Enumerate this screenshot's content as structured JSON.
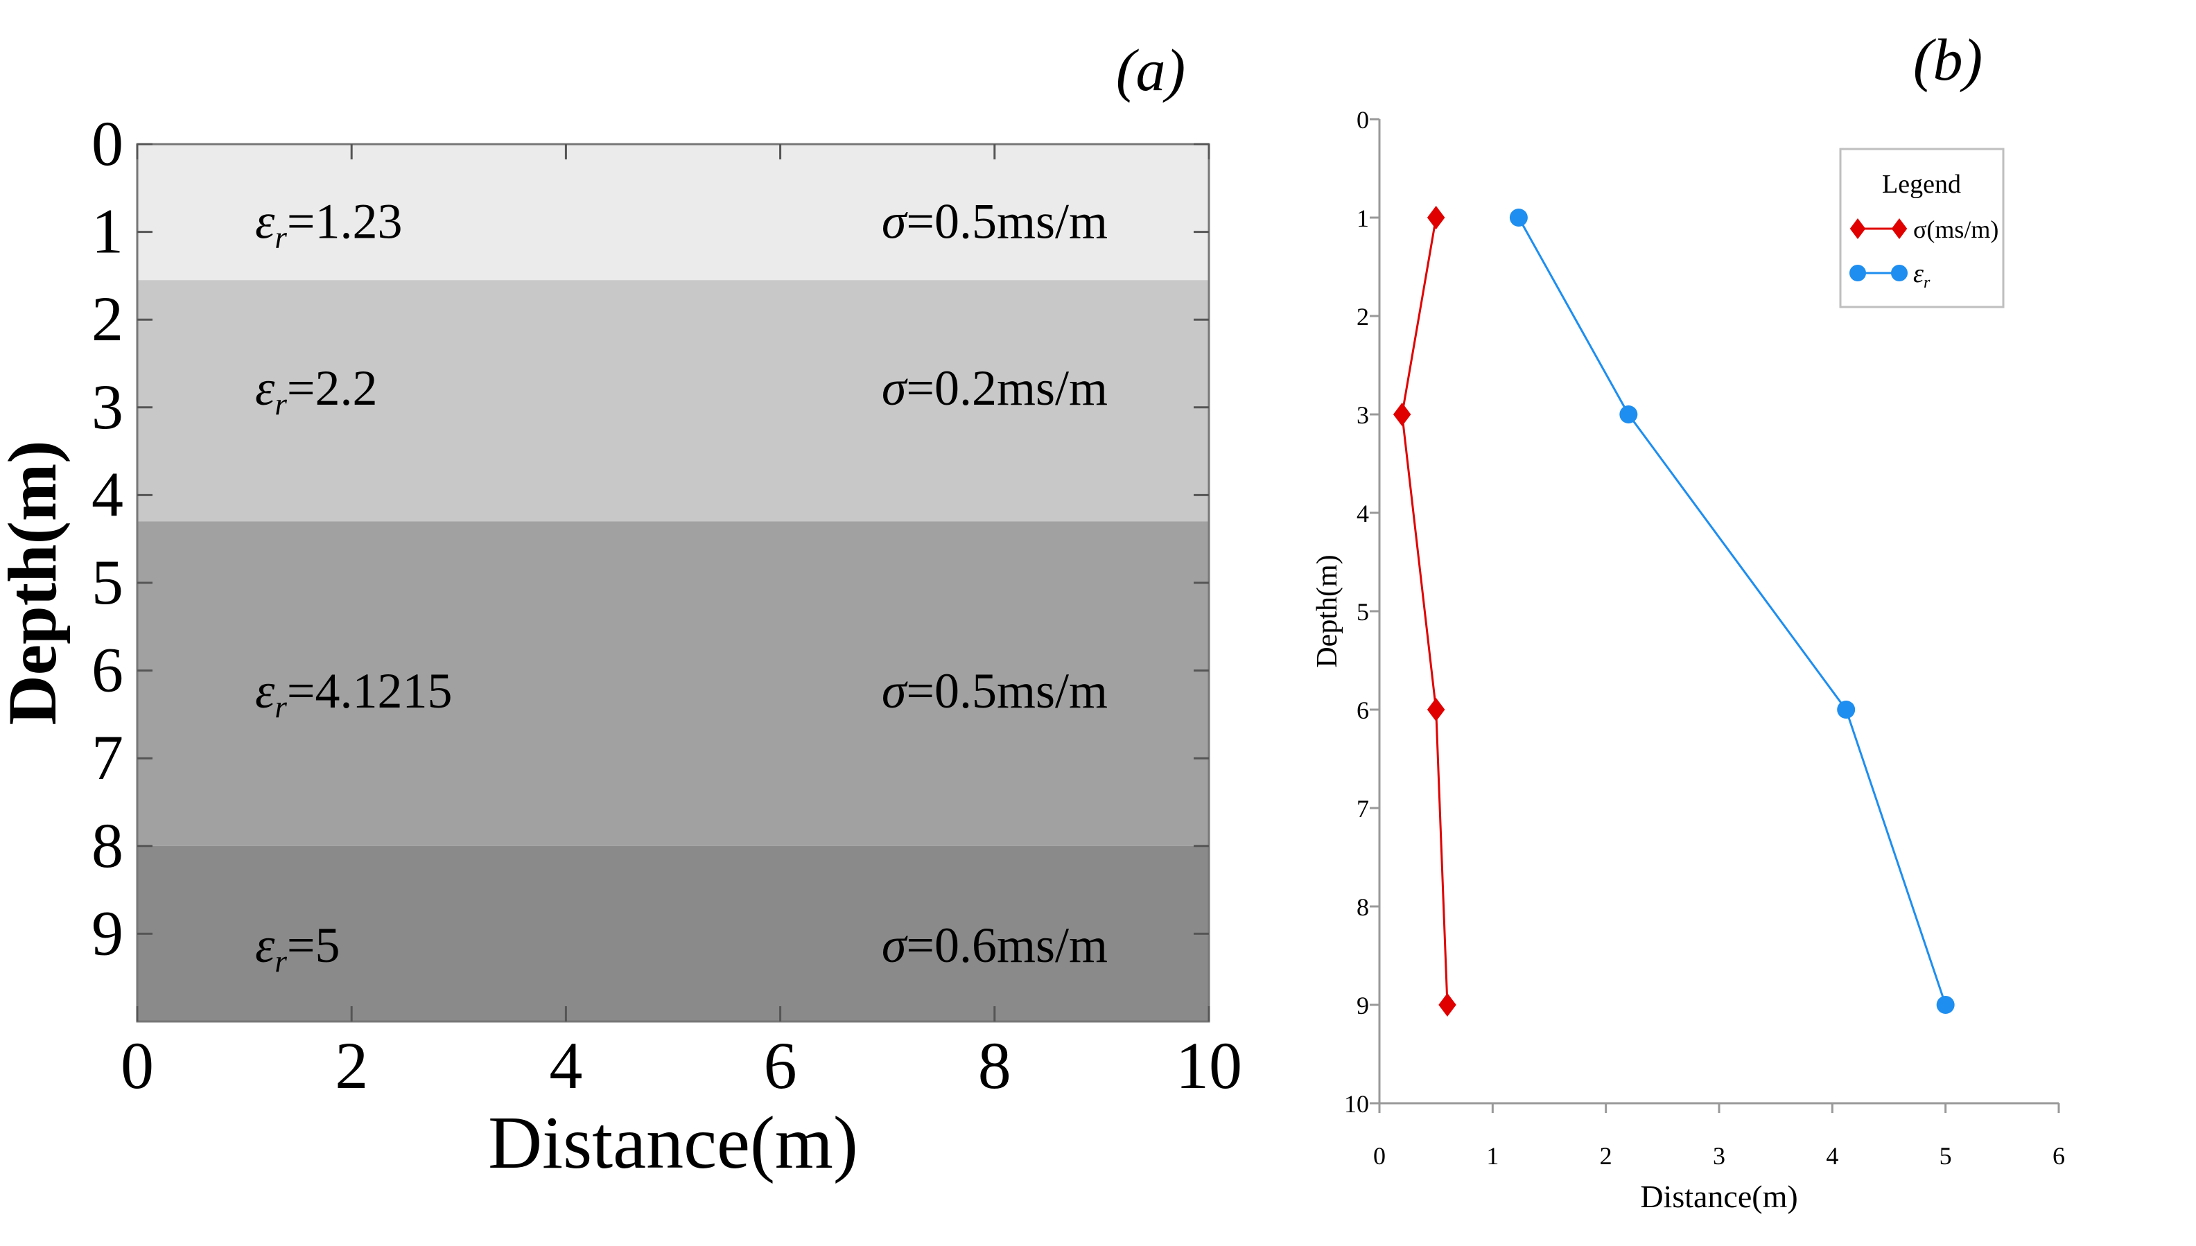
{
  "chart_data": [
    {
      "panel_label": "(a)",
      "type": "heatmap",
      "title": "",
      "xlabel": "Distance(m)",
      "ylabel": "Depth(m)",
      "xlim": [
        0,
        10
      ],
      "ylim": [
        0,
        10
      ],
      "x_ticks": [
        "0",
        "2",
        "4",
        "6",
        "8",
        "10"
      ],
      "y_ticks": [
        "0",
        "1",
        "2",
        "3",
        "4",
        "5",
        "6",
        "7",
        "8",
        "9"
      ],
      "layers": [
        {
          "top": 0,
          "bottom": 1.55,
          "shade": "#ebebeb",
          "er_label": "εr=1.23",
          "sigma_label": "σ=0.5ms/m",
          "label_depth": 0.85
        },
        {
          "top": 1.55,
          "bottom": 4.3,
          "shade": "#c8c8c8",
          "er_label": "εr=2.2",
          "sigma_label": "σ=0.2ms/m",
          "label_depth": 2.75
        },
        {
          "top": 4.3,
          "bottom": 8.0,
          "shade": "#a1a1a1",
          "er_label": "εr=4.1215",
          "sigma_label": "σ=0.5ms/m",
          "label_depth": 6.2
        },
        {
          "top": 8.0,
          "bottom": 10,
          "shade": "#8a8a8a",
          "er_label": "εr=5",
          "sigma_label": "σ=0.6ms/m",
          "label_depth": 9.1
        }
      ]
    },
    {
      "panel_label": "(b)",
      "type": "line",
      "title": "",
      "xlabel": "Distance(m)",
      "ylabel": "Depth(m)",
      "xlim": [
        0,
        6
      ],
      "ylim": [
        0,
        10
      ],
      "x_ticks": [
        "0",
        "1",
        "2",
        "3",
        "4",
        "5",
        "6"
      ],
      "y_ticks": [
        "0",
        "1",
        "2",
        "3",
        "4",
        "5",
        "6",
        "7",
        "8",
        "9",
        "10"
      ],
      "legend_title": "Legend",
      "legend_position": "top-right",
      "series": [
        {
          "name": "σ(ms/m)",
          "color": "#e00000",
          "marker": "diamond",
          "x": [
            0.5,
            0.2,
            0.5,
            0.6
          ],
          "y": [
            1,
            3,
            6,
            9
          ]
        },
        {
          "name": "εr",
          "color": "#1e8ef0",
          "marker": "circle",
          "x": [
            1.23,
            2.2,
            4.1215,
            5
          ],
          "y": [
            1,
            3,
            6,
            9
          ]
        }
      ]
    }
  ]
}
